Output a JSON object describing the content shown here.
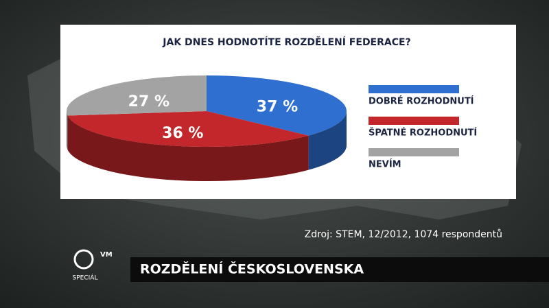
{
  "chart_data": {
    "type": "pie",
    "title": "JAK DNES HODNOTÍTE ROZDĚLENÍ FEDERACE?",
    "categories": [
      "DOBRÉ ROZHODNUTÍ",
      "ŠPATNÉ ROZHODNUTÍ",
      "NEVÍM"
    ],
    "values": [
      37,
      36,
      27
    ],
    "value_labels": [
      "37 %",
      "36 %",
      "27 %"
    ],
    "colors": [
      "#2e6fcf",
      "#c3272b",
      "#a3a3a3"
    ]
  },
  "source": "Zdroj: STEM, 12/2012, 1074 respondentů",
  "banner": "ROZDĚLENÍ ČESKOSLOVENSKA",
  "logo": {
    "top": "VM",
    "bottom": "SPECIÁL"
  }
}
